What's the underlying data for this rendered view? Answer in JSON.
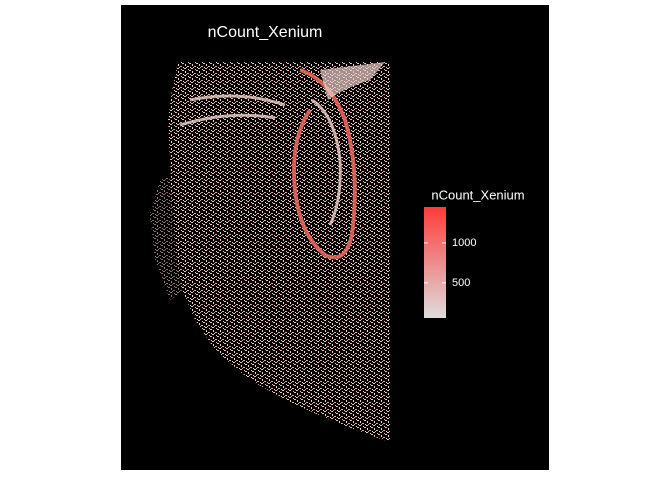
{
  "chart_data": {
    "type": "spatial",
    "title": "nCount_Xenium",
    "legend_title": "nCount_Xenium",
    "colorbar": {
      "lim": [
        60,
        1450
      ],
      "ticks": [
        500,
        1000
      ],
      "colors": [
        "#dddddd",
        "#ff3a3a"
      ]
    },
    "background": "#000000"
  }
}
